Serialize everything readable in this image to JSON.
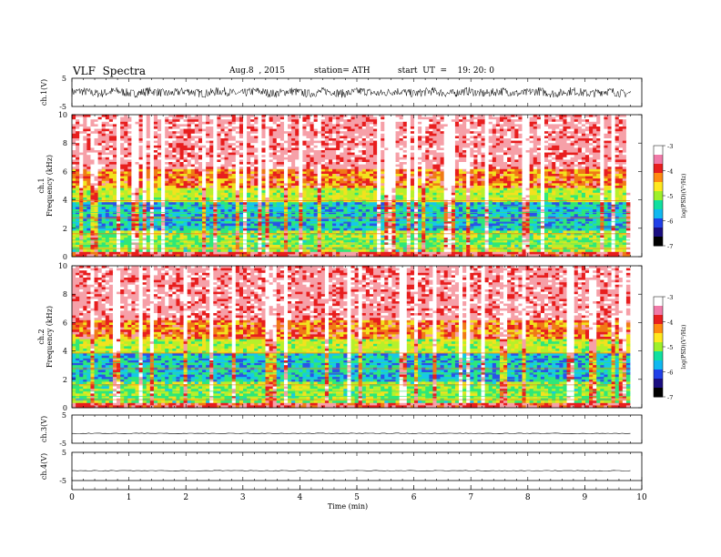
{
  "header": {
    "title": "VLF  Spectra",
    "date": "Aug.8  , 2015",
    "station": "station= ATH",
    "start": "start  UT  =    19: 20: 0"
  },
  "chart_data": [
    {
      "type": "line",
      "panel": "ch1-waveform",
      "ylabel": "ch.1(V)",
      "ylim": [
        -5,
        5
      ],
      "y_ticks": [
        "5",
        "-5"
      ],
      "trace_amplitude": 1.5,
      "duration_min": 9.8
    },
    {
      "type": "heatmap",
      "panel": "ch1-spectrogram",
      "ylabel": "Frequency  (kHz)",
      "channel_label": "ch.1",
      "ylim": [
        0,
        10
      ],
      "y_ticks": [
        "0",
        "2",
        "4",
        "6",
        "8",
        "10"
      ],
      "x_range_min": [
        0,
        9.8
      ],
      "colorbar": {
        "label": "log(PSD)(V²/Hz)",
        "range": [
          -7,
          -3
        ],
        "ticks": [
          "-3",
          "-4",
          "-5",
          "-6",
          "-7"
        ]
      }
    },
    {
      "type": "heatmap",
      "panel": "ch2-spectrogram",
      "ylabel": "Frequency  (kHz)",
      "channel_label": "ch.2",
      "ylim": [
        0,
        10
      ],
      "y_ticks": [
        "0",
        "2",
        "4",
        "6",
        "8",
        "10"
      ],
      "x_range_min": [
        0,
        9.8
      ],
      "colorbar": {
        "label": "log(PSD)(V²/Hz)",
        "range": [
          -7,
          -3
        ],
        "ticks": [
          "-3",
          "-4",
          "-5",
          "-6",
          "-7"
        ]
      }
    },
    {
      "type": "line",
      "panel": "ch3-waveform",
      "ylabel": "ch.3(V)",
      "ylim": [
        -5,
        5
      ],
      "y_ticks": [
        "5",
        "-5"
      ],
      "trace_level": -1.5,
      "duration_min": 9.8
    },
    {
      "type": "line",
      "panel": "ch4-waveform",
      "ylabel": "ch.4(V)",
      "ylim": [
        -5,
        5
      ],
      "y_ticks": [
        "5",
        "-5"
      ],
      "trace_level": -1.5,
      "duration_min": 9.8
    }
  ],
  "xaxis": {
    "label": "Time  (min)",
    "xlim": [
      0,
      10
    ],
    "ticks": [
      "0",
      "1",
      "2",
      "3",
      "4",
      "5",
      "6",
      "7",
      "8",
      "9",
      "10"
    ]
  },
  "colors": {
    "scale": [
      "#000000",
      "#1e1a9c",
      "#2a52e8",
      "#16c8e8",
      "#2ee878",
      "#b6f02a",
      "#f2e21e",
      "#f07a16",
      "#e81e1e",
      "#f6a0a8",
      "#ffffff"
    ],
    "colorbar_steps": [
      "#ffffff",
      "#f07aa8",
      "#e81e1e",
      "#ff8a10",
      "#ffe81e",
      "#9ef02a",
      "#10e0a0",
      "#10b8f0",
      "#2040e8",
      "#1a0e80",
      "#000000"
    ]
  }
}
